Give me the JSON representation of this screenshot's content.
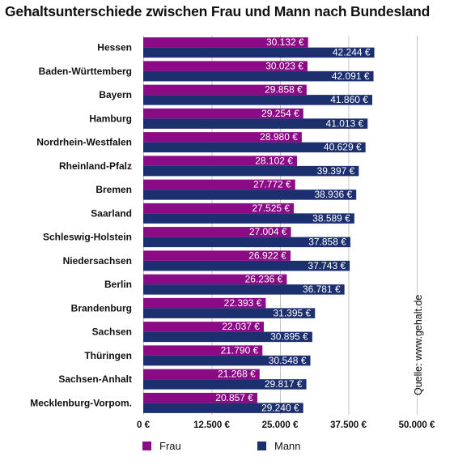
{
  "chart_data": {
    "type": "bar",
    "orientation": "horizontal",
    "title": "Gehaltsunterschiede zwischen Frau und Mann nach Bundesland",
    "categories": [
      "Hessen",
      "Baden-Württemberg",
      "Bayern",
      "Hamburg",
      "Nordrhein-Westfalen",
      "Rheinland-Pfalz",
      "Bremen",
      "Saarland",
      "Schleswig-Holstein",
      "Niedersachsen",
      "Berlin",
      "Brandenburg",
      "Sachsen",
      "Thüringen",
      "Sachsen-Anhalt",
      "Mecklenburg-Vorpom."
    ],
    "series": [
      {
        "name": "Frau",
        "color": "#8b0a86",
        "values": [
          30132,
          30023,
          29858,
          29254,
          28980,
          28102,
          27772,
          27525,
          27004,
          26922,
          26236,
          22393,
          22037,
          21790,
          21268,
          20857
        ],
        "labels": [
          "30.132 €",
          "30.023 €",
          "29.858 €",
          "29.254 €",
          "28.980 €",
          "28.102 €",
          "27.772 €",
          "27.525 €",
          "27.004 €",
          "26.922 €",
          "26.236 €",
          "22.393 €",
          "22.037 €",
          "21.790 €",
          "21.268 €",
          "20.857 €"
        ]
      },
      {
        "name": "Mann",
        "color": "#1c2f6e",
        "values": [
          42244,
          42091,
          41860,
          41013,
          40629,
          39397,
          38936,
          38589,
          37858,
          37743,
          36781,
          31395,
          30895,
          30548,
          29817,
          29240
        ],
        "labels": [
          "42.244 €",
          "42.091 €",
          "41.860 €",
          "41.013 €",
          "40.629 €",
          "39.397 €",
          "38.936 €",
          "38.589 €",
          "37.858 €",
          "37.743 €",
          "36.781 €",
          "31.395 €",
          "30.895 €",
          "30.548 €",
          "29.817 €",
          "29.240 €"
        ]
      }
    ],
    "xlim": [
      0,
      50000
    ],
    "xticks": [
      0,
      12500,
      25000,
      37500,
      50000
    ],
    "xtick_labels": [
      "0 €",
      "12.500 €",
      "25.000 €",
      "37.500 €",
      "50.000 €"
    ],
    "grid": "vertical",
    "legend": "bottom",
    "source": "Quelle: www.gehalt.de"
  }
}
